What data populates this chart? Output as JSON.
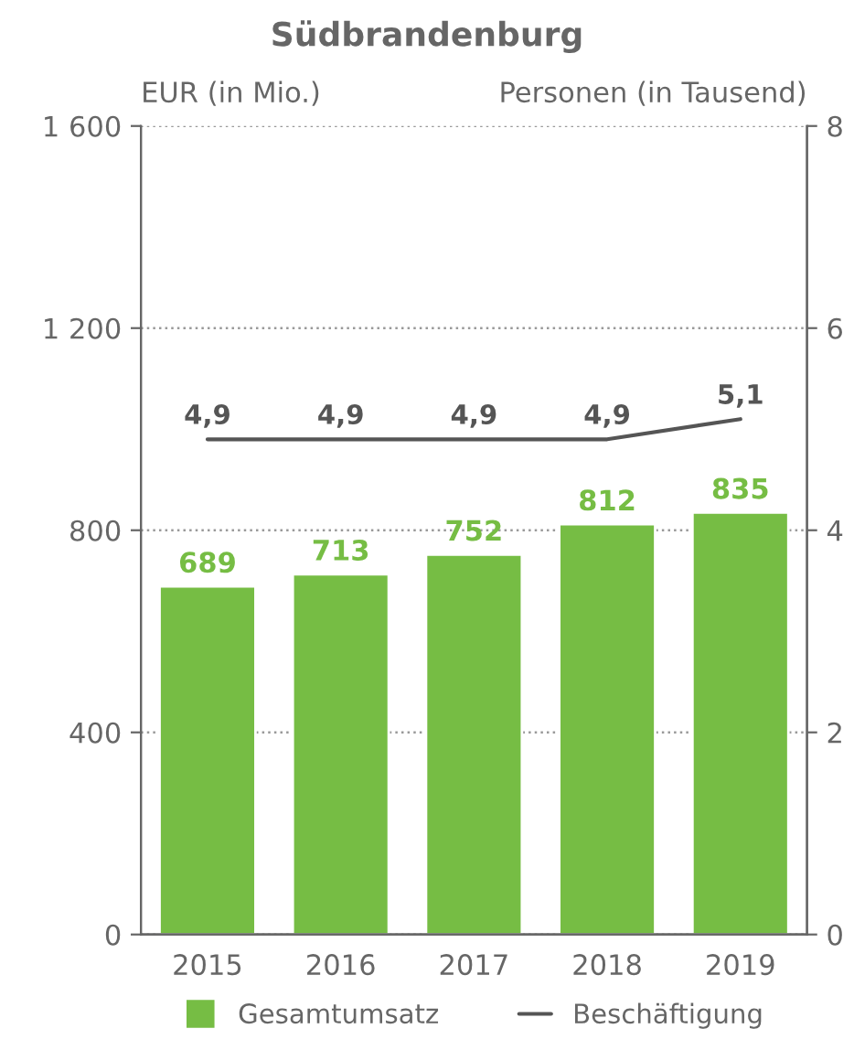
{
  "chart_data": {
    "type": "bar",
    "title": "Südbrandenburg",
    "ylabel": "EUR (in Mio.)",
    "y2label": "Personen (in Tausend)",
    "categories": [
      "2015",
      "2016",
      "2017",
      "2018",
      "2019"
    ],
    "series": [
      {
        "name": "Gesamtumsatz",
        "color": "#76bd44",
        "values": [
          689,
          713,
          752,
          812,
          835
        ],
        "value_labels": [
          "689",
          "713",
          "752",
          "812",
          "835"
        ]
      },
      {
        "name": "Beschäftigung",
        "type": "line",
        "axis": "y2",
        "color": "#555555",
        "values": [
          4.9,
          4.9,
          4.9,
          4.9,
          5.1
        ],
        "value_labels": [
          "4,9",
          "4,9",
          "4,9",
          "4,9",
          "5,1"
        ]
      }
    ],
    "ylim": [
      0,
      1600
    ],
    "yticks": [
      0,
      400,
      800,
      {
        "value": 1200,
        "label": "1 200"
      },
      {
        "value": 1600,
        "label": "1 600"
      }
    ],
    "y2lim": [
      0,
      8
    ],
    "y2ticks": [
      0,
      2,
      4,
      6,
      8
    ],
    "grid": "y",
    "legend": "bottom",
    "marker": "none",
    "line_style": "solid"
  }
}
